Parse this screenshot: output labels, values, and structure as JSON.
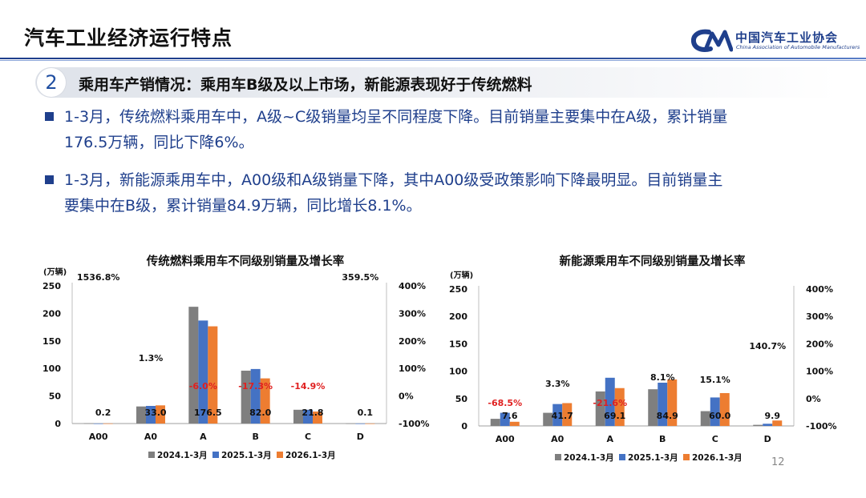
{
  "header": {
    "title": "汽车工业经济运行特点",
    "logo_cn": "中国汽车工业协会",
    "logo_en": "China Association of Automobile Manufacturers"
  },
  "section": {
    "number": "2",
    "title": "乘用车产销情况：乘用车B级及以上市场，新能源表现好于传统燃料"
  },
  "bullets": [
    {
      "line1": "1-3月，传统燃料乘用车中，A级~C级销量均呈不同程度下降。目前销量主要集中在A级，累计销量",
      "line2": "176.5万辆，同比下降6%。"
    },
    {
      "line1": "1-3月，新能源乘用车中，A00级和A级销量下降，其中A00级受政策影响下降最明显。目前销量主",
      "line2": "要集中在B级，累计销量84.9万辆，同比增长8.1%。"
    }
  ],
  "page_number": "12",
  "colors": {
    "brand": "#1f3f8c",
    "gray": "#7f7f7f",
    "blue": "#4472c4",
    "orange": "#ed7d31",
    "negative": "#e02020"
  },
  "chart_data": [
    {
      "type": "bar",
      "title": "传统燃料乘用车不同级别销量及增长率",
      "ylabel": "(万辆)",
      "categories": [
        "A00",
        "A0",
        "A",
        "B",
        "C",
        "D"
      ],
      "series": [
        {
          "name": "2024.1-3月",
          "color": "#7f7f7f",
          "values": [
            0.5,
            31,
            212,
            96,
            25,
            0.2
          ]
        },
        {
          "name": "2025.1-3月",
          "color": "#4472c4",
          "values": [
            0.1,
            32,
            187,
            99,
            25,
            0.1
          ]
        },
        {
          "name": "2026.1-3月",
          "color": "#ed7d31",
          "values": [
            0.2,
            33.0,
            176.5,
            82.0,
            21.8,
            0.1
          ]
        }
      ],
      "value_labels": [
        "0.2",
        "33.0",
        "176.5",
        "82.0",
        "21.8",
        "0.1"
      ],
      "growth_labels": [
        "1536.8%",
        "1.3%",
        "-6.0%",
        "-17.3%",
        "-14.9%",
        "359.5%"
      ],
      "growth_values": [
        1536.8,
        1.3,
        -6.0,
        -17.3,
        -14.9,
        359.5
      ],
      "ylim": [
        0,
        250
      ],
      "yticks": [
        "0",
        "50",
        "100",
        "150",
        "200",
        "250"
      ],
      "y2ticks": [
        "-100%",
        "0%",
        "100%",
        "200%",
        "300%",
        "400%"
      ],
      "legend": "bottom"
    },
    {
      "type": "bar",
      "title": "新能源乘用车不同级别销量及增长率",
      "ylabel": "(万辆)",
      "categories": [
        "A00",
        "A0",
        "A",
        "B",
        "C",
        "D"
      ],
      "series": [
        {
          "name": "2024.1-3月",
          "color": "#7f7f7f",
          "values": [
            13,
            24,
            63,
            67,
            27,
            2
          ]
        },
        {
          "name": "2025.1-3月",
          "color": "#4472c4",
          "values": [
            24,
            40,
            88,
            79,
            52,
            4
          ]
        },
        {
          "name": "2026.1-3月",
          "color": "#ed7d31",
          "values": [
            7.6,
            41.7,
            69.1,
            84.9,
            60.0,
            9.9
          ]
        }
      ],
      "value_labels": [
        "7.6",
        "41.7",
        "69.1",
        "84.9",
        "60.0",
        "9.9"
      ],
      "growth_labels": [
        "-68.5%",
        "3.3%",
        "-21.6%",
        "8.1%",
        "15.1%",
        "140.7%"
      ],
      "growth_values": [
        -68.5,
        3.3,
        -21.6,
        8.1,
        15.1,
        140.7
      ],
      "ylim": [
        0,
        250
      ],
      "yticks": [
        "0",
        "50",
        "100",
        "150",
        "200",
        "250"
      ],
      "y2ticks": [
        "-100%",
        "0%",
        "100%",
        "200%",
        "300%",
        "400%"
      ],
      "legend": "bottom"
    }
  ]
}
